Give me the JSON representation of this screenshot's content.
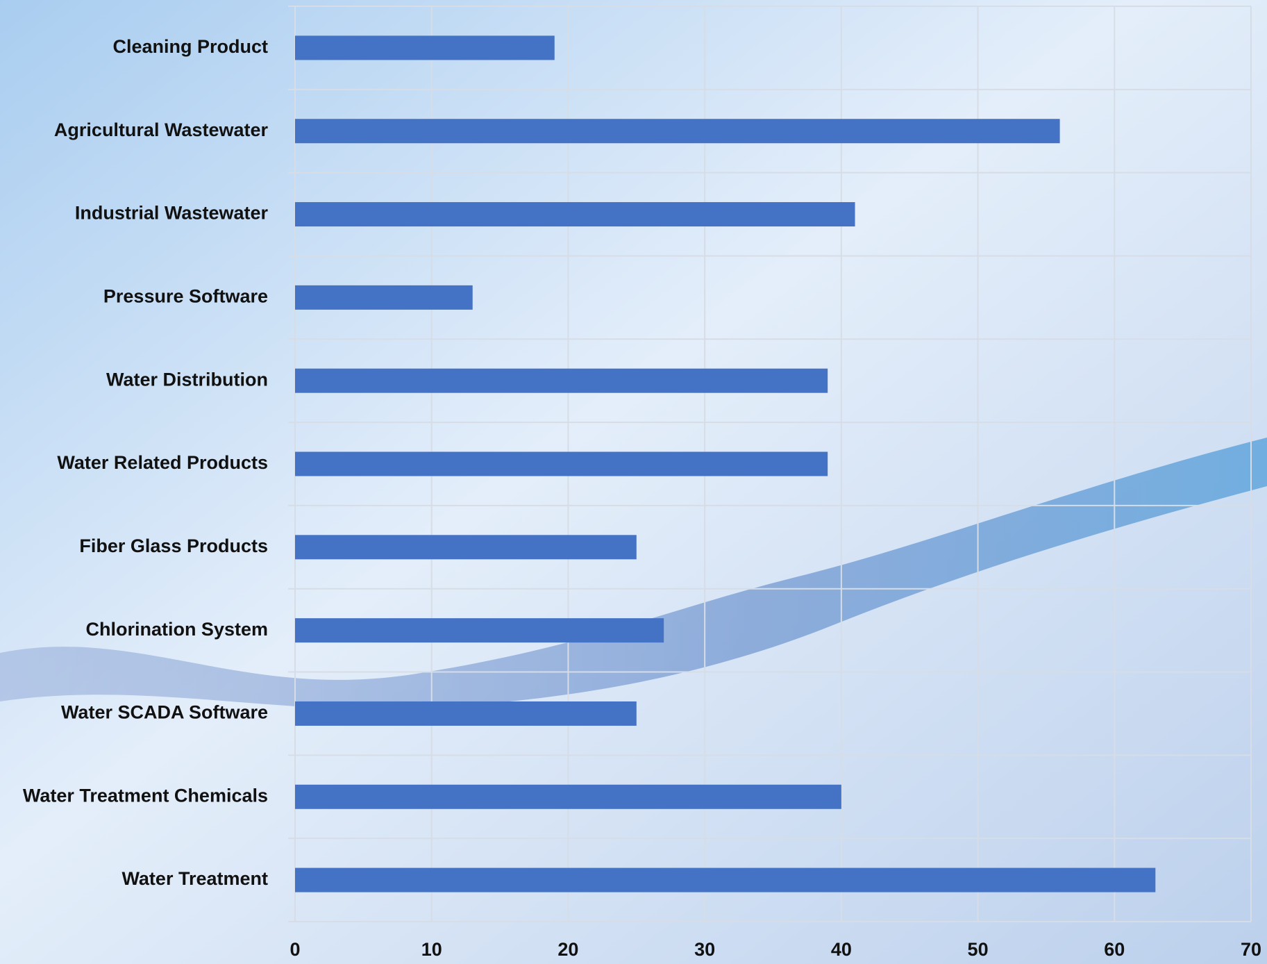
{
  "chart_data": {
    "type": "bar",
    "orientation": "horizontal",
    "categories": [
      "Cleaning Product",
      "Agricultural Wastewater",
      "Industrial Wastewater",
      "Pressure Software",
      "Water Distribution",
      "Water Related Products",
      "Fiber Glass Products",
      "Chlorination System",
      "Water SCADA Software",
      "Water Treatment Chemicals",
      "Water Treatment"
    ],
    "values": [
      19,
      56,
      41,
      13,
      39,
      39,
      25,
      27,
      25,
      40,
      63
    ],
    "color": "#4472c4",
    "xlim": [
      0,
      70
    ],
    "xticks": [
      0,
      10,
      20,
      30,
      40,
      50,
      60,
      70
    ],
    "grid": true
  }
}
